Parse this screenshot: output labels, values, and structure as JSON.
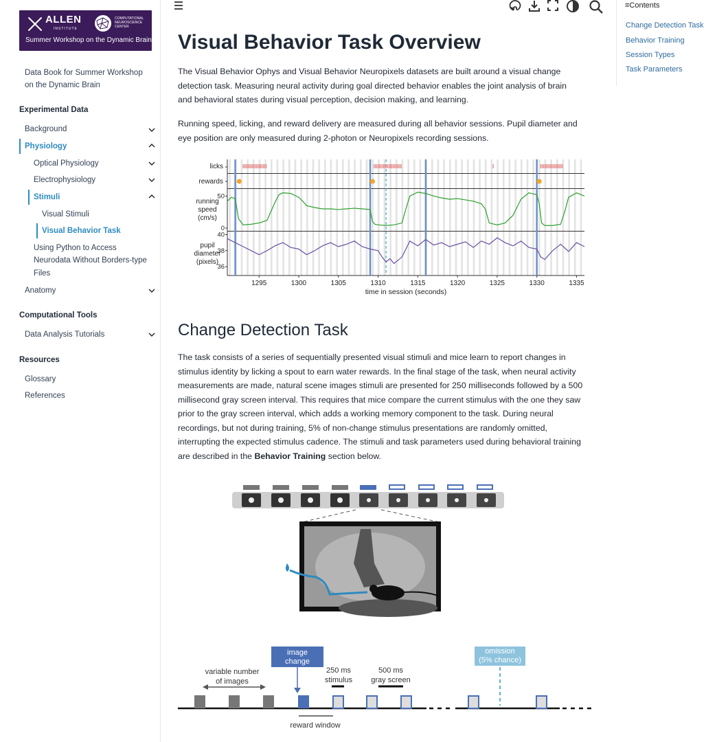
{
  "logo": {
    "brand": "ALLEN",
    "brand_sub": "INSTITUTE",
    "center": "COMPUTATIONAL NEUROSCIENCE CENTER",
    "workshop": "Summer Workshop on the Dynamic Brain"
  },
  "sidebar": {
    "book_title": "Data Book for Summer Workshop on the Dynamic Brain",
    "sections": [
      {
        "caption": "Experimental Data"
      },
      {
        "caption": "Computational Tools"
      },
      {
        "caption": "Resources"
      }
    ],
    "items": {
      "background": "Background",
      "physiology": "Physiology",
      "optical": "Optical Physiology",
      "electro": "Electrophysiology",
      "stimuli": "Stimuli",
      "visual_stimuli": "Visual Stimuli",
      "visual_behavior_task": "Visual Behavior Task",
      "python_line1": "Using Python to Access",
      "python_line2": "Neurodata Without Borders-type",
      "python_line3": "Files",
      "anatomy": "Anatomy",
      "data_analysis": "Data Analysis Tutorials",
      "glossary": "Glossary",
      "references": "References"
    }
  },
  "toc": {
    "title": "Contents",
    "items": [
      "Change Detection Task",
      "Behavior Training",
      "Session Types",
      "Task Parameters"
    ]
  },
  "page": {
    "title": "Visual Behavior Task Overview",
    "intro_lines": [
      "The Visual Behavior Ophys and Visual Behavior Neuropixels datasets are built around a visual change",
      "detection task. Measuring neural activity during goal directed behavior enables the joint analysis of brain",
      "and behavioral states during visual perception, decision making, and learning."
    ],
    "para2_lines": [
      "Running speed, licking, and reward delivery are measured during all behavior sessions. Pupil diameter and",
      "eye position are only measured during 2-photon or Neuropixels recording sessions."
    ],
    "section_title": "Change Detection Task",
    "cd_lines": [
      "The task consists of a series of sequentially presented visual stimuli and mice learn to report changes in",
      "stimulus identity by licking a spout to earn water rewards. In the final stage of the task, when neural activity",
      "measurements are made, natural scene images stimuli are presented for 250 milliseconds followed by a 500",
      "millisecond gray screen interval. This requires that mice compare the current stimulus with the one they saw",
      "prior to the gray screen interval, which adds a working memory component to the task. During neural",
      "recordings, but not during training, 5% of non-change stimulus presentations are randomly omitted,",
      "interrupting the expected stimulus cadence. The stimuli and task parameters used during behavioral training"
    ],
    "cd_last_pre": "are described in the ",
    "cd_last_bold": "Behavior Training",
    "cd_last_post": " section below."
  },
  "chart_data": {
    "type": "line",
    "xlabel": "time in session (seconds)",
    "x_ticks": [
      1295,
      1300,
      1305,
      1310,
      1315,
      1320,
      1325,
      1330,
      1335
    ],
    "xlim": [
      1291,
      1336
    ],
    "image_changes": [
      1292,
      1309,
      1316,
      1330
    ],
    "omission": 1311,
    "rows": {
      "licks": "licks",
      "rewards": "rewards",
      "speed_label": [
        "running",
        "speed",
        "(cm/s)"
      ],
      "pupil_label": [
        "pupil",
        "diameter",
        "(pixels)"
      ]
    },
    "speed_ticks": [
      0,
      50
    ],
    "pupil_ticks": [
      36,
      38,
      40
    ],
    "rewards_x": [
      1292.5,
      1309.3,
      1330.3
    ],
    "lick_bouts": [
      [
        1293,
        1296
      ],
      [
        1309.5,
        1313
      ],
      [
        1324.5,
        1324.6
      ],
      [
        1330.5,
        1333.3
      ]
    ],
    "series": [
      {
        "name": "running speed",
        "color": "#2ca02c",
        "x": [
          1291,
          1291.5,
          1292,
          1292.4,
          1293,
          1294,
          1295,
          1296,
          1297,
          1297.5,
          1298,
          1299,
          1300,
          1300.5,
          1301,
          1302,
          1303,
          1304,
          1305,
          1306,
          1307,
          1308,
          1309,
          1309.3,
          1309.6,
          1310,
          1311,
          1312,
          1313,
          1313.5,
          1314,
          1315,
          1316,
          1317,
          1318,
          1319,
          1320,
          1321,
          1322,
          1323,
          1323.5,
          1324,
          1325,
          1326,
          1327,
          1328,
          1329,
          1330,
          1330.3,
          1330.6,
          1331,
          1332,
          1333,
          1333.5,
          1334,
          1335,
          1336
        ],
        "values": [
          42,
          48,
          46,
          15,
          5,
          6,
          8,
          12,
          40,
          52,
          55,
          54,
          48,
          42,
          35,
          32,
          30,
          30,
          29,
          30,
          31,
          30,
          29,
          10,
          6,
          5,
          4,
          5,
          8,
          30,
          50,
          56,
          54,
          50,
          47,
          45,
          46,
          44,
          42,
          38,
          30,
          8,
          5,
          8,
          20,
          45,
          55,
          52,
          38,
          8,
          4,
          4,
          6,
          25,
          48,
          55,
          50
        ]
      },
      {
        "name": "pupil diameter",
        "color": "#6a51a3",
        "x": [
          1291,
          1292,
          1293,
          1294,
          1295,
          1296,
          1297,
          1298,
          1299,
          1300,
          1301,
          1302,
          1303,
          1304,
          1305,
          1306,
          1307,
          1308,
          1309,
          1310,
          1310.5,
          1311,
          1311.5,
          1312,
          1313,
          1314,
          1315,
          1316,
          1317,
          1318,
          1319,
          1320,
          1321,
          1322,
          1323,
          1324,
          1325,
          1326,
          1327,
          1328,
          1329,
          1330,
          1330.5,
          1331,
          1332,
          1333,
          1334,
          1335,
          1336
        ],
        "values": [
          39.5,
          39,
          38.5,
          38,
          37.5,
          38,
          38.6,
          39,
          38.4,
          38.2,
          37.5,
          38,
          38.6,
          39,
          38.5,
          38.8,
          39.2,
          38.5,
          38.2,
          38,
          37.2,
          36.6,
          37,
          36.4,
          37.2,
          39.2,
          38.6,
          39.4,
          38.7,
          39,
          38.5,
          38.8,
          39.1,
          38.4,
          39.2,
          38.8,
          39.6,
          39,
          38.6,
          39.2,
          38.4,
          38.2,
          37.2,
          36.9,
          38,
          38.8,
          37.9,
          39,
          38.5
        ]
      }
    ]
  },
  "diagram": {
    "image_change": [
      "image",
      "change"
    ],
    "variable": [
      "variable number",
      "of images"
    ],
    "ms250": [
      "250 ms",
      "stimulus"
    ],
    "ms500": [
      "500 ms",
      "gray screen"
    ],
    "omission": [
      "omission",
      "(5% chance)"
    ],
    "reward_window": "reward window"
  }
}
